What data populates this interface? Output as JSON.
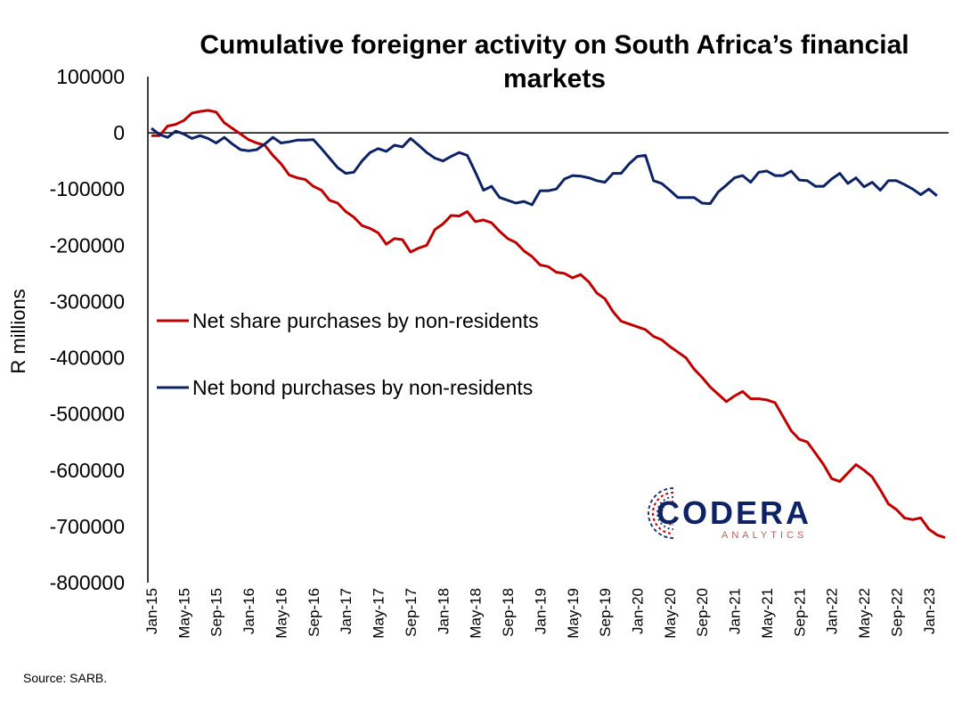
{
  "source_note": "Source: SARB.",
  "logo": {
    "name": "CODERA",
    "tagline": "ANALYTICS"
  },
  "chart_data": {
    "type": "line",
    "title": "Cumulative foreigner activity on South Africa’s financial markets",
    "ylabel": "R millions",
    "xlabel": "",
    "ylim": [
      -800000,
      100000
    ],
    "yticks": [
      100000,
      0,
      -100000,
      -200000,
      -300000,
      -400000,
      -500000,
      -600000,
      -700000,
      -800000
    ],
    "ytick_labels": [
      "100000",
      "0",
      "-100000",
      "-200000",
      "-300000",
      "-400000",
      "-500000",
      "-600000",
      "-700000",
      "-800000"
    ],
    "xtick_labels": [
      "Jan-15",
      "May-15",
      "Sep-15",
      "Jan-16",
      "May-16",
      "Sep-16",
      "Jan-17",
      "May-17",
      "Sep-17",
      "Jan-18",
      "May-18",
      "Sep-18",
      "Jan-19",
      "May-19",
      "Sep-19",
      "Jan-20",
      "May-20",
      "Sep-20",
      "Jan-21",
      "May-21",
      "Sep-21",
      "Jan-22",
      "May-22",
      "Sep-22",
      "Jan-23"
    ],
    "x_start": "Jan-15",
    "x_frequency": "monthly",
    "grid": false,
    "legend_position": "center-left",
    "series": [
      {
        "name": "Net share purchases by non-residents",
        "color": "#c00000",
        "values": [
          -5000,
          -5000,
          12000,
          15000,
          22000,
          35000,
          38000,
          40000,
          37000,
          18000,
          8000,
          -2000,
          -12000,
          -18000,
          -22000,
          -40000,
          -55000,
          -75000,
          -80000,
          -83000,
          -95000,
          -102000,
          -120000,
          -125000,
          -140000,
          -150000,
          -165000,
          -170000,
          -178000,
          -198000,
          -188000,
          -190000,
          -212000,
          -205000,
          -200000,
          -172000,
          -162000,
          -147000,
          -148000,
          -140000,
          -158000,
          -155000,
          -160000,
          -175000,
          -188000,
          -195000,
          -210000,
          -220000,
          -235000,
          -238000,
          -248000,
          -250000,
          -258000,
          -252000,
          -265000,
          -285000,
          -295000,
          -318000,
          -335000,
          -340000,
          -345000,
          -350000,
          -362000,
          -368000,
          -380000,
          -390000,
          -400000,
          -420000,
          -435000,
          -452000,
          -465000,
          -478000,
          -468000,
          -460000,
          -473000,
          -473000,
          -475000,
          -480000,
          -505000,
          -530000,
          -545000,
          -550000,
          -570000,
          -590000,
          -615000,
          -620000,
          -605000,
          -590000,
          -600000,
          -612000,
          -635000,
          -660000,
          -670000,
          -685000,
          -688000,
          -685000,
          -705000,
          -715000,
          -720000
        ]
      },
      {
        "name": "Net bond purchases by non-residents",
        "color": "#0d2366",
        "values": [
          8000,
          -3000,
          -8000,
          3000,
          -2000,
          -10000,
          -5000,
          -10000,
          -18000,
          -8000,
          -20000,
          -30000,
          -32000,
          -30000,
          -20000,
          -8000,
          -18000,
          -16000,
          -13000,
          -13000,
          -12000,
          -28000,
          -45000,
          -62000,
          -72000,
          -70000,
          -50000,
          -35000,
          -28000,
          -33000,
          -22000,
          -25000,
          -10000,
          -22000,
          -35000,
          -45000,
          -50000,
          -42000,
          -35000,
          -40000,
          -70000,
          -102000,
          -95000,
          -115000,
          -120000,
          -125000,
          -122000,
          -128000,
          -103000,
          -103000,
          -100000,
          -82000,
          -76000,
          -77000,
          -80000,
          -85000,
          -88000,
          -72000,
          -72000,
          -55000,
          -42000,
          -40000,
          -85000,
          -90000,
          -102000,
          -115000,
          -115000,
          -115000,
          -125000,
          -126000,
          -105000,
          -93000,
          -80000,
          -76000,
          -88000,
          -70000,
          -68000,
          -76000,
          -76000,
          -68000,
          -84000,
          -85000,
          -95000,
          -95000,
          -82000,
          -72000,
          -90000,
          -80000,
          -96000,
          -88000,
          -102000,
          -85000,
          -85000,
          -92000,
          -100000,
          -110000,
          -100000,
          -112000
        ]
      }
    ]
  }
}
